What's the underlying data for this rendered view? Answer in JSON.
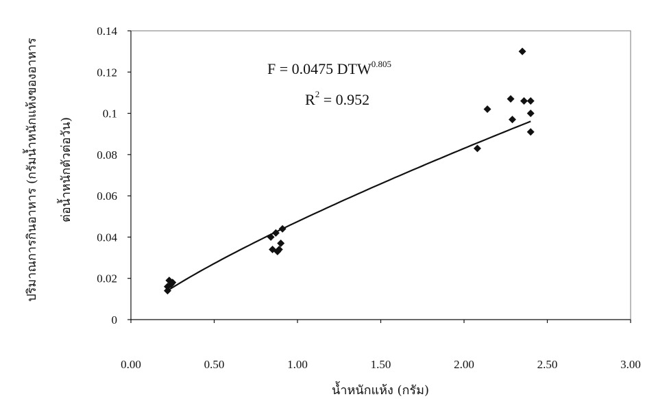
{
  "chart_data": {
    "type": "scatter",
    "xlabel": "น้ำหนักแห้ง (กรัม)",
    "ylabel_line1": "ปริมาณการกินอาหาร (กรัมน้ำหนักแห้งของอาหาร",
    "ylabel_line2": "ต่อน้ำหนักตัวต่อวัน)",
    "xlim": [
      0,
      3
    ],
    "ylim": [
      0,
      0.14
    ],
    "x_ticks": [
      "0.00",
      "0.50",
      "1.00",
      "1.50",
      "2.00",
      "2.50",
      "3.00"
    ],
    "x_tick_values": [
      0,
      0.5,
      1.0,
      1.5,
      2.0,
      2.5,
      3.0
    ],
    "y_ticks": [
      "0",
      "0.02",
      "0.04",
      "0.06",
      "0.08",
      "0.1",
      "0.12",
      "0.14"
    ],
    "y_tick_values": [
      0,
      0.02,
      0.04,
      0.06,
      0.08,
      0.1,
      0.12,
      0.14
    ],
    "grid": false,
    "marker": "diamond",
    "marker_color": "#111111",
    "line_color": "#111111",
    "points": [
      {
        "x": 0.22,
        "y": 0.014
      },
      {
        "x": 0.22,
        "y": 0.016
      },
      {
        "x": 0.23,
        "y": 0.019
      },
      {
        "x": 0.24,
        "y": 0.017
      },
      {
        "x": 0.25,
        "y": 0.018
      },
      {
        "x": 0.84,
        "y": 0.04
      },
      {
        "x": 0.85,
        "y": 0.034
      },
      {
        "x": 0.87,
        "y": 0.042
      },
      {
        "x": 0.88,
        "y": 0.033
      },
      {
        "x": 0.89,
        "y": 0.034
      },
      {
        "x": 0.9,
        "y": 0.037
      },
      {
        "x": 0.91,
        "y": 0.044
      },
      {
        "x": 2.08,
        "y": 0.083
      },
      {
        "x": 2.14,
        "y": 0.102
      },
      {
        "x": 2.28,
        "y": 0.107
      },
      {
        "x": 2.29,
        "y": 0.097
      },
      {
        "x": 2.35,
        "y": 0.13
      },
      {
        "x": 2.36,
        "y": 0.106
      },
      {
        "x": 2.4,
        "y": 0.106
      },
      {
        "x": 2.4,
        "y": 0.1
      },
      {
        "x": 2.4,
        "y": 0.091
      }
    ],
    "trendline": {
      "type": "power",
      "a": 0.0475,
      "b": 0.805,
      "x_range": [
        0.22,
        2.4
      ],
      "equation_prefix": "F = 0.0475 DTW",
      "equation_exponent": "0.805",
      "r2_prefix": "R",
      "r2_exponent": "2",
      "r2_suffix": " = 0.952"
    }
  }
}
